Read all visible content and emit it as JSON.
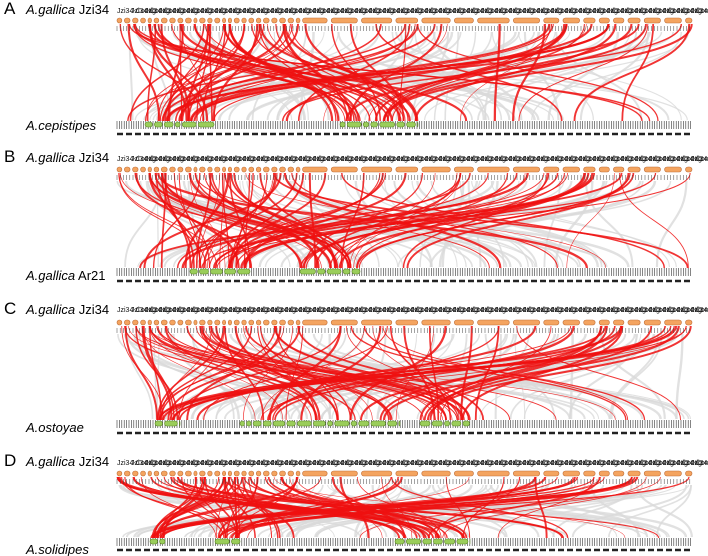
{
  "panels": [
    {
      "letter": "A",
      "top_genus": "A.gallica",
      "top_strain": "Jzi34",
      "bottom_genus": "A.cepistipes",
      "bottom_strain": ""
    },
    {
      "letter": "B",
      "top_genus": "A.gallica",
      "top_strain": "Jzi34",
      "bottom_genus": "A.gallica",
      "bottom_strain": "Ar21"
    },
    {
      "letter": "C",
      "top_genus": "A.gallica",
      "top_strain": "Jzi34",
      "bottom_genus": "A.ostoyae",
      "bottom_strain": ""
    },
    {
      "letter": "D",
      "top_genus": "A.gallica",
      "top_strain": "Jzi34",
      "bottom_genus": "A.solidipes",
      "bottom_strain": ""
    }
  ],
  "contig_label_text": "Jzi34-Contig",
  "colors": {
    "top_contig": "#f4a460",
    "top_contig_border": "#c0703a",
    "bottom_contig": "#9acd5a",
    "bottom_contig_border": "#5f8a2a",
    "syntenic_link": "#ee1111",
    "background_link": "#d9d9d9"
  }
}
